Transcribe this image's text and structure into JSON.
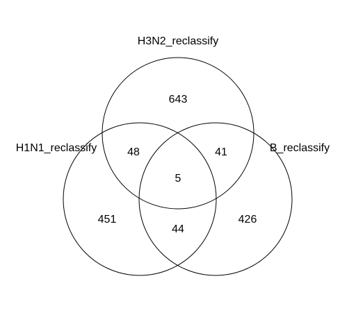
{
  "venn": {
    "sets": {
      "h3n2": {
        "label": "H3N2_reclassify"
      },
      "h1n1": {
        "label": "H1N1_reclassify"
      },
      "b": {
        "label": "B_reclassify"
      }
    },
    "counts": {
      "h3n2_only": "643",
      "h1n1_h3n2": "48",
      "h3n2_b": "41",
      "all_three": "5",
      "h1n1_only": "451",
      "h1n1_b": "44",
      "b_only": "426"
    }
  },
  "style": {
    "stroke_color": "#000000",
    "text_color": "#000000",
    "background": "#ffffff"
  }
}
